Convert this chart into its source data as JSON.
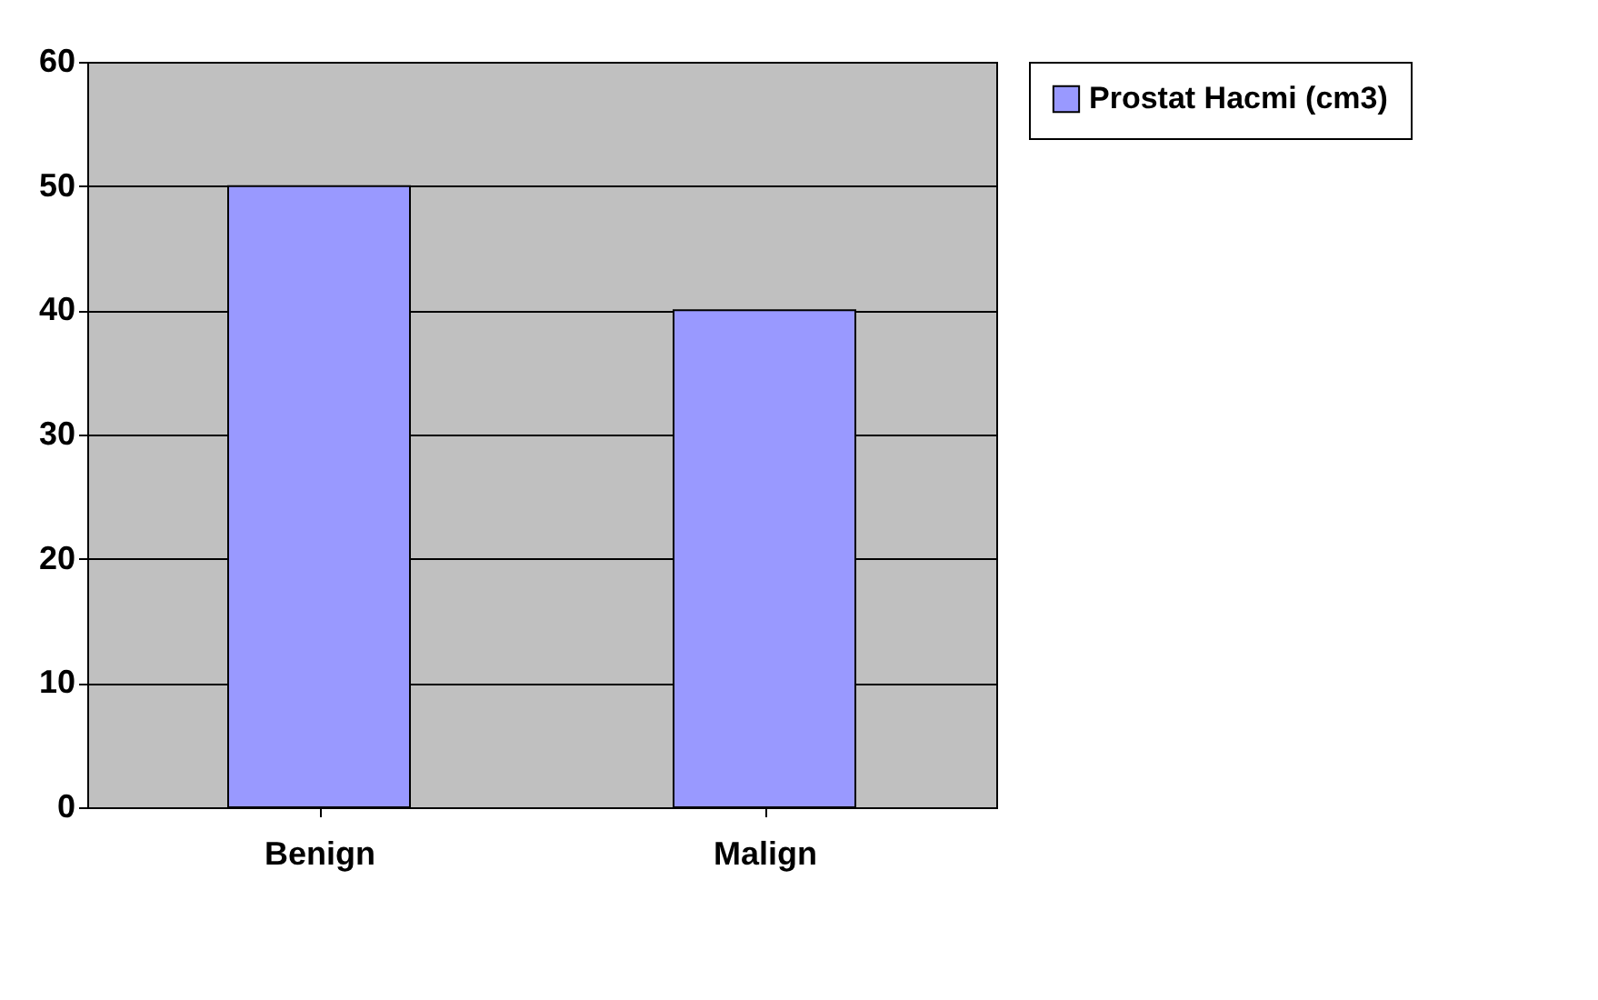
{
  "chart_data": {
    "type": "bar",
    "categories": [
      "Benign",
      "Malign"
    ],
    "series": [
      {
        "name": "Prostat Hacmi (cm3)",
        "color": "#9999ff",
        "values": [
          50,
          40
        ]
      }
    ],
    "ylim": [
      0,
      60
    ],
    "yticks": [
      0,
      10,
      20,
      30,
      40,
      50,
      60
    ],
    "grid": "y",
    "legend": "right"
  }
}
